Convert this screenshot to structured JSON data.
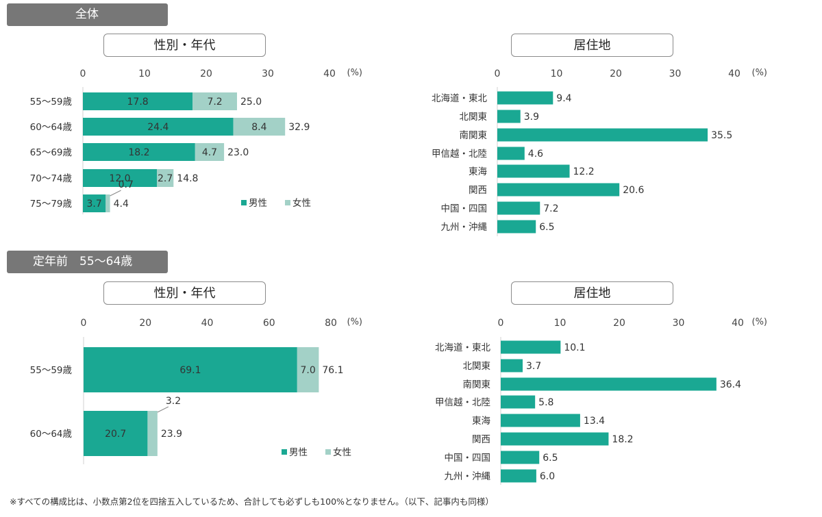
{
  "sections": {
    "all": "全体",
    "pre_retirement": "定年前　55～64歳"
  },
  "panel_titles": {
    "top_left": "性別・年代",
    "top_right": "居住地",
    "bottom_left": "性別・年代",
    "bottom_right": "居住地"
  },
  "footnote": "※すべての構成比は、小数点第2位を四捨五入しているため、合計しても必ずしも100%となりません。（以下、記事内も同様）",
  "colors": {
    "male": "#1aa893",
    "female": "#a3d1c7",
    "region": "#1aa893"
  },
  "chart_data": [
    {
      "type": "bar",
      "orientation": "horizontal",
      "stacked": true,
      "title": "性別・年代",
      "unit_label": "(%)",
      "xlim": [
        0,
        40
      ],
      "ticks": [
        0,
        10,
        20,
        30,
        40
      ],
      "categories": [
        "55～59歳",
        "60～64歳",
        "65～69歳",
        "70～74歳",
        "75～79歳"
      ],
      "series": [
        {
          "name": "男性",
          "values": [
            17.8,
            24.4,
            18.2,
            12.0,
            3.7
          ]
        },
        {
          "name": "女性",
          "values": [
            7.2,
            8.4,
            4.7,
            2.7,
            0.7
          ]
        }
      ],
      "totals": [
        25.0,
        32.9,
        23.0,
        14.8,
        4.4
      ],
      "legend": "bottom-right"
    },
    {
      "type": "bar",
      "orientation": "horizontal",
      "title": "居住地",
      "unit_label": "(%)",
      "xlim": [
        0,
        40
      ],
      "ticks": [
        0,
        10,
        20,
        30,
        40
      ],
      "categories": [
        "北海道・東北",
        "北関東",
        "南関東",
        "甲信越・北陸",
        "東海",
        "関西",
        "中国・四国",
        "九州・沖縄"
      ],
      "values": [
        9.4,
        3.9,
        35.5,
        4.6,
        12.2,
        20.6,
        7.2,
        6.5
      ]
    },
    {
      "type": "bar",
      "orientation": "horizontal",
      "stacked": true,
      "title": "性別・年代",
      "unit_label": "(%)",
      "xlim": [
        0,
        80
      ],
      "ticks": [
        0,
        20,
        40,
        60,
        80
      ],
      "categories": [
        "55～59歳",
        "60～64歳"
      ],
      "series": [
        {
          "name": "男性",
          "values": [
            69.1,
            20.7
          ]
        },
        {
          "name": "女性",
          "values": [
            7.0,
            3.2
          ]
        }
      ],
      "totals": [
        76.1,
        23.9
      ],
      "legend": "bottom-right"
    },
    {
      "type": "bar",
      "orientation": "horizontal",
      "title": "居住地",
      "unit_label": "(%)",
      "xlim": [
        0,
        40
      ],
      "ticks": [
        0,
        10,
        20,
        30,
        40
      ],
      "categories": [
        "北海道・東北",
        "北関東",
        "南関東",
        "甲信越・北陸",
        "東海",
        "関西",
        "中国・四国",
        "九州・沖縄"
      ],
      "values": [
        10.1,
        3.7,
        36.4,
        5.8,
        13.4,
        18.2,
        6.5,
        6.0
      ]
    }
  ]
}
